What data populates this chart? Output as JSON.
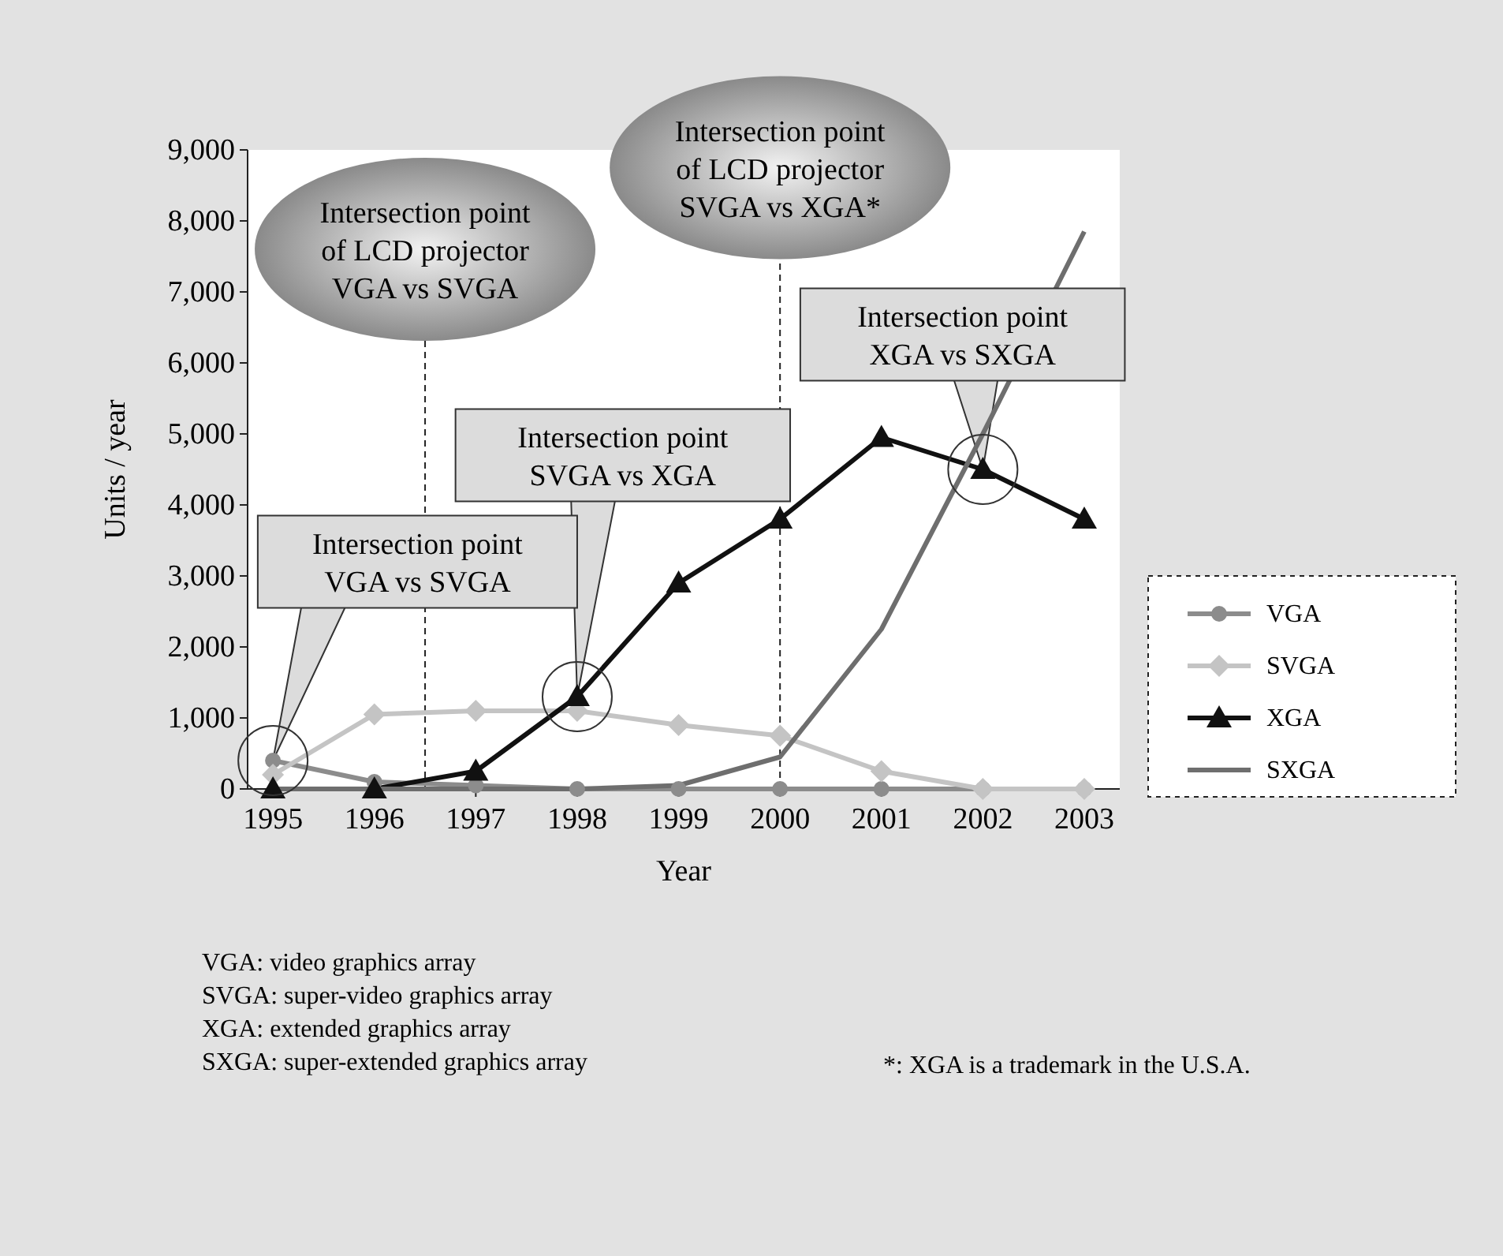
{
  "chart_data": {
    "type": "line",
    "xlabel": "Year",
    "ylabel": "Units / year",
    "x": [
      1995,
      1996,
      1997,
      1998,
      1999,
      2000,
      2001,
      2002,
      2003
    ],
    "xlim": [
      1994.75,
      2003.35
    ],
    "xticks": [
      1995,
      1996,
      1997,
      1998,
      1999,
      2000,
      2001,
      2002,
      2003
    ],
    "ylim": [
      0,
      9000
    ],
    "yticks": [
      {
        "value": 0,
        "label": "0"
      },
      {
        "value": 1000,
        "label": "1,000"
      },
      {
        "value": 2000,
        "label": "2,000"
      },
      {
        "value": 3000,
        "label": "3,000"
      },
      {
        "value": 4000,
        "label": "4,000"
      },
      {
        "value": 5000,
        "label": "5,000"
      },
      {
        "value": 6000,
        "label": "6,000"
      },
      {
        "value": 7000,
        "label": "7,000"
      },
      {
        "value": 8000,
        "label": "8,000"
      },
      {
        "value": 9000,
        "label": "9,000"
      }
    ],
    "grid": false,
    "legend": "right",
    "line_style": "solid",
    "series": [
      {
        "name": "VGA",
        "color": "#8c8c8c",
        "marker": "circle",
        "values": [
          400,
          100,
          50,
          0,
          0,
          0,
          0,
          0,
          0
        ]
      },
      {
        "name": "SVGA",
        "color": "#c4c4c4",
        "marker": "diamond",
        "values": [
          200,
          1050,
          1100,
          1100,
          900,
          750,
          250,
          0,
          0
        ]
      },
      {
        "name": "XGA",
        "color": "#111111",
        "marker": "triangle",
        "values": [
          0,
          0,
          250,
          1300,
          2900,
          3800,
          4950,
          4500,
          3800
        ]
      },
      {
        "name": "SXGA",
        "color": "#6e6e6e",
        "marker": "none",
        "values": [
          0,
          0,
          0,
          0,
          50,
          450,
          2250,
          5000,
          7850
        ]
      }
    ],
    "ref_lines": [
      {
        "axis": "x",
        "value": 1996.5,
        "label": "Intersection point\nof LCD projector\nVGA vs SVGA",
        "line_style": "dashed"
      },
      {
        "axis": "x",
        "value": 2000,
        "label": "Intersection point\nof LCD projector\nSVGA vs XGA*",
        "line_style": "dashed"
      }
    ],
    "annotations": [
      {
        "text": "Intersection point\nVGA vs SVGA",
        "x": 1995,
        "y": 400
      },
      {
        "text": "Intersection point\nSVGA vs XGA",
        "x": 1998,
        "y": 1300
      },
      {
        "text": "Intersection point\nXGA vs SXGA",
        "x": 2002,
        "y": 4500
      },
      "VGA: video graphics array\nSVGA: super-video graphics array\nXGA: extended graphics array\nSXGA: super-extended graphics array",
      "*: XGA is a trademark in the U.S.A."
    ]
  }
}
